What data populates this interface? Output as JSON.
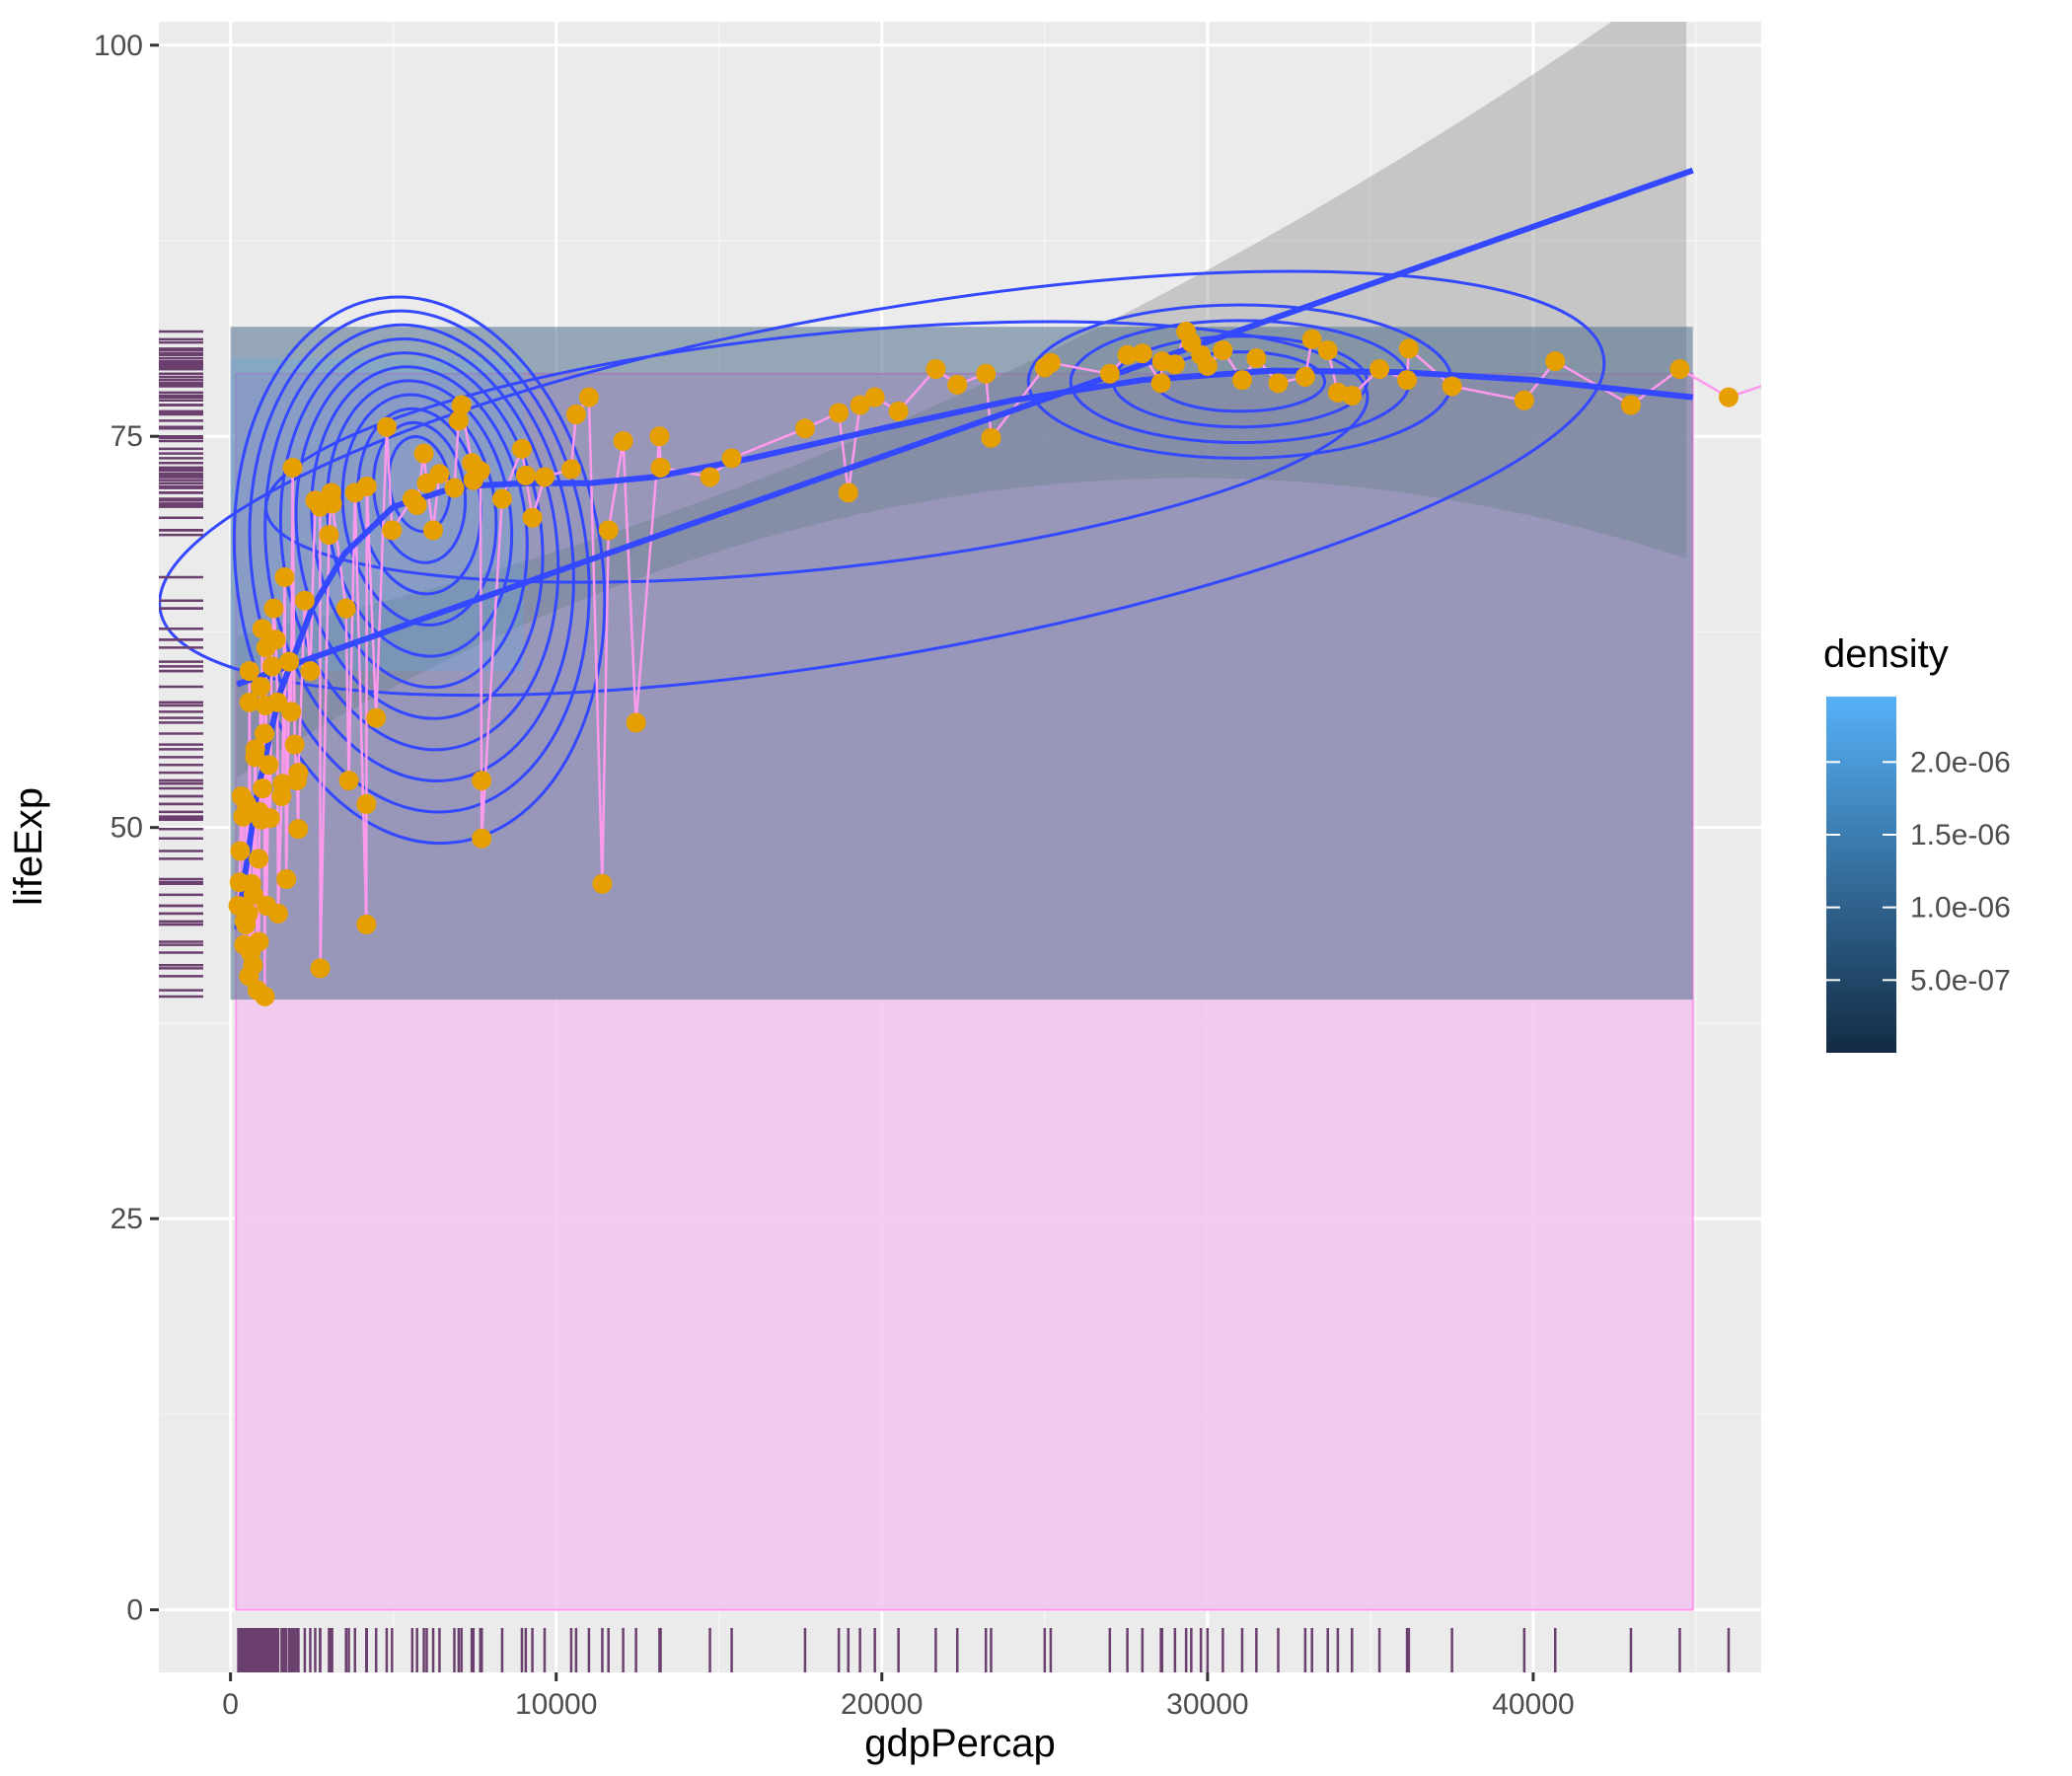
{
  "chart_data": {
    "type": "scatter",
    "xlabel": "gdpPercap",
    "ylabel": "lifeExp",
    "xlim": [
      -2200,
      47000
    ],
    "ylim": [
      -4,
      101.5
    ],
    "x_ticks": [
      0,
      10000,
      20000,
      30000,
      40000
    ],
    "x_tick_labels": [
      "0",
      "10000",
      "20000",
      "30000",
      "40000"
    ],
    "y_ticks": [
      0,
      25,
      50,
      75,
      100
    ],
    "y_tick_labels": [
      "0",
      "25",
      "50",
      "75",
      "100"
    ],
    "grid": true,
    "legend": {
      "title": "density",
      "placement": "right",
      "min": 0,
      "max": 2.45e-06,
      "breaks": [
        5e-07,
        1e-06,
        1.5e-06,
        2e-06
      ],
      "labels": [
        "5.0e-07",
        "1.0e-06",
        "1.5e-06",
        "2.0e-06"
      ],
      "low_color": "#132B43",
      "high_color": "#56B1F7"
    },
    "colors": {
      "points": "#E69F00",
      "path": "#FF99EE",
      "smooth": "#3348FF",
      "contour": "#3348FF",
      "rug": "#6B3F6E",
      "area_fill": "#F2C4F0",
      "ribbon": "#999999"
    },
    "area_box": {
      "x_range": [
        170,
        44900
      ],
      "y_range": [
        0,
        79
      ]
    },
    "density_box": {
      "x_range": [
        0,
        44900
      ],
      "y_range": [
        39,
        82
      ]
    },
    "points": [
      [
        241,
        45
      ],
      [
        277,
        46.5
      ],
      [
        298,
        48.5
      ],
      [
        339,
        52
      ],
      [
        388,
        50.7
      ],
      [
        415,
        42.5
      ],
      [
        430,
        44
      ],
      [
        470,
        43.8
      ],
      [
        493,
        51.5
      ],
      [
        545,
        44.5
      ],
      [
        566,
        40.5
      ],
      [
        577,
        58
      ],
      [
        579,
        60
      ],
      [
        619,
        42
      ],
      [
        641,
        46.4
      ],
      [
        691,
        41.2
      ],
      [
        706,
        45.7
      ],
      [
        752,
        54.5
      ],
      [
        759,
        55
      ],
      [
        824,
        39.6
      ],
      [
        863,
        48
      ],
      [
        875,
        42.7
      ],
      [
        883,
        51
      ],
      [
        926,
        59
      ],
      [
        944,
        50.5
      ],
      [
        974,
        62.7
      ],
      [
        986,
        52.5
      ],
      [
        1042,
        56
      ],
      [
        1055,
        39.2
      ],
      [
        1071,
        57.8
      ],
      [
        1091,
        61.5
      ],
      [
        1107,
        45
      ],
      [
        1172,
        54
      ],
      [
        1217,
        50.6
      ],
      [
        1270,
        62
      ],
      [
        1278,
        60.3
      ],
      [
        1328,
        64
      ],
      [
        1391,
        62
      ],
      [
        1442,
        58
      ],
      [
        1463,
        44.5
      ],
      [
        1570,
        52
      ],
      [
        1598,
        52.8
      ],
      [
        1662,
        66
      ],
      [
        1713,
        46.7
      ],
      [
        1804,
        60.6
      ],
      [
        1866,
        57.4
      ],
      [
        1908,
        73
      ],
      [
        1971,
        55.3
      ],
      [
        2042,
        53
      ],
      [
        2083,
        53.5
      ],
      [
        2082,
        49.9
      ],
      [
        2281,
        64.5
      ],
      [
        2449,
        60
      ],
      [
        2601,
        70.9
      ],
      [
        2749,
        70.5
      ],
      [
        2755,
        41
      ],
      [
        3025,
        68.7
      ],
      [
        3095,
        71.4
      ],
      [
        3121,
        70.7
      ],
      [
        3548,
        64
      ],
      [
        3632,
        53
      ],
      [
        3822,
        71.4
      ],
      [
        4173,
        51.5
      ],
      [
        4185,
        71.8
      ],
      [
        4172,
        43.8
      ],
      [
        4471,
        57
      ],
      [
        4797,
        75.6
      ],
      [
        4959,
        69
      ],
      [
        5581,
        71
      ],
      [
        5728,
        70.6
      ],
      [
        5937,
        73.9
      ],
      [
        6025,
        72
      ],
      [
        6223,
        69
      ],
      [
        6417,
        72.6
      ],
      [
        6873,
        71.7
      ],
      [
        7006,
        76
      ],
      [
        7092,
        77
      ],
      [
        7408,
        73.3
      ],
      [
        7458,
        72.2
      ],
      [
        7670,
        72.8
      ],
      [
        7710,
        53
      ],
      [
        7713,
        49.3
      ],
      [
        8341,
        71
      ],
      [
        8948,
        74.2
      ],
      [
        9066,
        72.5
      ],
      [
        9269,
        69.8
      ],
      [
        9645,
        72.4
      ],
      [
        10461,
        72.9
      ],
      [
        10611,
        76.4
      ],
      [
        11006,
        77.5
      ],
      [
        11416,
        46.4
      ],
      [
        11606,
        69
      ],
      [
        12057,
        74.7
      ],
      [
        12452,
        56.7
      ],
      [
        13172,
        75
      ],
      [
        13206,
        73
      ],
      [
        14722,
        72.4
      ],
      [
        15389,
        73.6
      ],
      [
        17642,
        75.5
      ],
      [
        18678,
        76.5
      ],
      [
        18970,
        71.4
      ],
      [
        19329,
        77
      ],
      [
        19785,
        77.5
      ],
      [
        20510,
        76.6
      ],
      [
        21655,
        79.3
      ],
      [
        22316,
        78.3
      ],
      [
        23194,
        79
      ],
      [
        23353,
        74.9
      ],
      [
        25185,
        79.7
      ],
      [
        27538,
        80.2
      ],
      [
        28569,
        78.4
      ],
      [
        28604,
        79.8
      ],
      [
        29342,
        81.7
      ],
      [
        29797,
        80.2
      ],
      [
        30470,
        80.5
      ],
      [
        31063,
        78.6
      ],
      [
        32170,
        78.4
      ],
      [
        33207,
        81.2
      ],
      [
        33693,
        80.5
      ],
      [
        34435,
        77.6
      ],
      [
        35278,
        79.3
      ],
      [
        36126,
        78.6
      ],
      [
        36180,
        80.6
      ],
      [
        37506,
        78.2
      ],
      [
        39725,
        77.3
      ],
      [
        40676,
        79.8
      ],
      [
        47143,
        78.3
      ],
      [
        43000,
        77
      ],
      [
        46000,
        77.5
      ],
      [
        44500,
        79.3
      ],
      [
        25000,
        79.4
      ],
      [
        29500,
        81
      ],
      [
        31500,
        80
      ],
      [
        30000,
        79.5
      ],
      [
        33000,
        78.8
      ],
      [
        34000,
        77.8
      ],
      [
        27000,
        79
      ],
      [
        28000,
        80.3
      ],
      [
        29000,
        79.6
      ]
    ]
  }
}
